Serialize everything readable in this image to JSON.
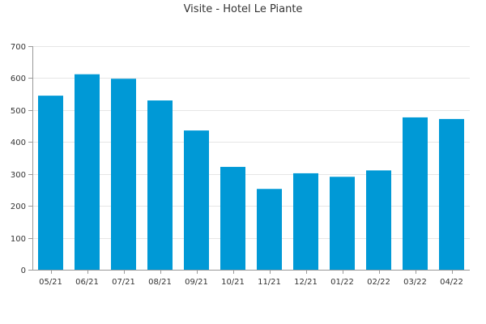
{
  "chart_data": {
    "type": "bar",
    "title": "Visite - Hotel Le Piante",
    "xlabel": "",
    "ylabel": "",
    "categories": [
      "05/21",
      "06/21",
      "07/21",
      "08/21",
      "09/21",
      "10/21",
      "11/21",
      "12/21",
      "01/22",
      "02/22",
      "03/22",
      "04/22"
    ],
    "values": [
      545,
      612,
      598,
      530,
      436,
      322,
      253,
      302,
      291,
      311,
      477,
      472
    ],
    "ylim": [
      0,
      700
    ],
    "yticks": [
      0,
      100,
      200,
      300,
      400,
      500,
      600,
      700
    ],
    "grid": true,
    "legend": "none",
    "colors": {
      "bar": "#0099d6",
      "grid": "#e6e6e6",
      "axis": "#999999",
      "text": "#333333"
    }
  }
}
